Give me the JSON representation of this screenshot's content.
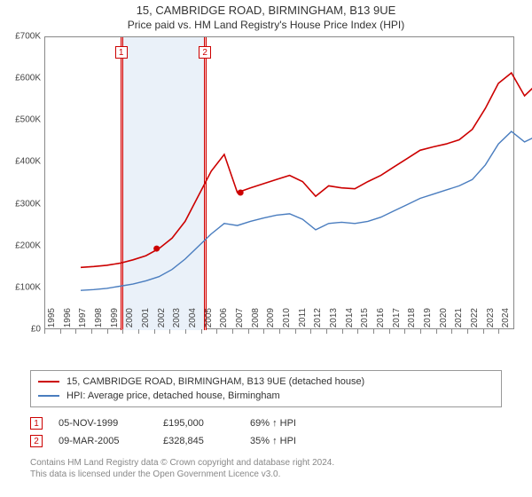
{
  "title_main": "15, CAMBRIDGE ROAD, BIRMINGHAM, B13 9UE",
  "title_sub": "Price paid vs. HM Land Registry's House Price Index (HPI)",
  "chart": {
    "type": "line",
    "background_color": "#ffffff",
    "grid_color": "#dddddd",
    "axis_color": "#888888",
    "label_fontsize": 10,
    "ylim": [
      0,
      700000
    ],
    "ytick_step": 100000,
    "y_tick_labels": [
      "£0",
      "£100K",
      "£200K",
      "£300K",
      "£400K",
      "£500K",
      "£600K",
      "£700K"
    ],
    "x_years": [
      1995,
      1996,
      1997,
      1998,
      1999,
      2000,
      2001,
      2002,
      2003,
      2004,
      2005,
      2006,
      2007,
      2008,
      2009,
      2010,
      2011,
      2012,
      2013,
      2014,
      2015,
      2016,
      2017,
      2018,
      2019,
      2020,
      2021,
      2022,
      2023,
      2024
    ],
    "series": [
      {
        "name": "property",
        "color": "#cc0000",
        "line_width": 1.6,
        "points_y": [
          150000,
          152000,
          155000,
          160000,
          168000,
          178000,
          195000,
          220000,
          260000,
          320000,
          380000,
          420000,
          328845,
          340000,
          350000,
          360000,
          370000,
          355000,
          320000,
          345000,
          340000,
          338000,
          355000,
          370000,
          390000,
          410000,
          430000,
          438000,
          445000,
          455000,
          480000,
          530000,
          590000,
          615000,
          560000,
          590000,
          580000
        ]
      },
      {
        "name": "hpi",
        "color": "#4a7dbf",
        "line_width": 1.4,
        "points_y": [
          95000,
          97000,
          100000,
          105000,
          110000,
          118000,
          128000,
          145000,
          170000,
          200000,
          230000,
          255000,
          250000,
          260000,
          268000,
          275000,
          278000,
          265000,
          240000,
          255000,
          258000,
          255000,
          260000,
          270000,
          285000,
          300000,
          315000,
          325000,
          335000,
          345000,
          360000,
          395000,
          445000,
          475000,
          450000,
          465000,
          470000
        ]
      }
    ],
    "markers": [
      {
        "label": "1",
        "color": "#cc0000",
        "fill": "#ffc4c4",
        "year": 1999.85
      },
      {
        "label": "2",
        "color": "#cc0000",
        "fill": "#ffc4c4",
        "year": 2005.2
      }
    ],
    "band": {
      "from_year": 1999.85,
      "to_year": 2005.2,
      "fill": "#eaf1f9"
    }
  },
  "legend": {
    "items": [
      {
        "color": "#cc0000",
        "label": "15, CAMBRIDGE ROAD, BIRMINGHAM, B13 9UE (detached house)"
      },
      {
        "color": "#4a7dbf",
        "label": "HPI: Average price, detached house, Birmingham"
      }
    ]
  },
  "events": [
    {
      "flag": "1",
      "flag_color": "#cc0000",
      "date": "05-NOV-1999",
      "price": "£195,000",
      "pct": "69% ↑ HPI"
    },
    {
      "flag": "2",
      "flag_color": "#cc0000",
      "date": "09-MAR-2005",
      "price": "£328,845",
      "pct": "35% ↑ HPI"
    }
  ],
  "footer_line1": "Contains HM Land Registry data © Crown copyright and database right 2024.",
  "footer_line2": "This data is licensed under the Open Government Licence v3.0."
}
